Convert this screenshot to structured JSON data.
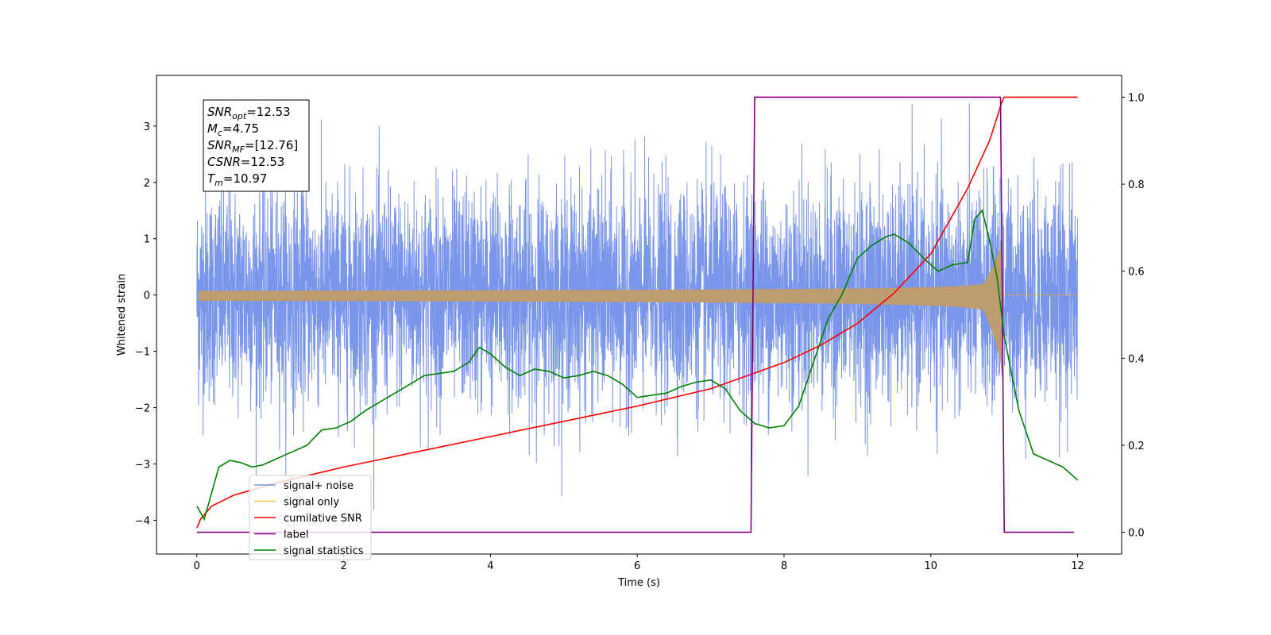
{
  "chart_data": {
    "type": "line",
    "xlabel": "Time (s)",
    "ylabel": "Whitened strain",
    "xlim": [
      -0.55,
      12.6
    ],
    "ylim": [
      -4.6,
      3.9
    ],
    "y2lim": [
      -0.05,
      1.05
    ],
    "x_ticks": [
      0,
      2,
      4,
      6,
      8,
      10,
      12
    ],
    "x_tick_labels": [
      "0",
      "2",
      "4",
      "6",
      "8",
      "10",
      "12"
    ],
    "y_ticks": [
      -4,
      -3,
      -2,
      -1,
      0,
      1,
      2,
      3
    ],
    "y_tick_labels": [
      "−4",
      "−3",
      "−2",
      "−1",
      "0",
      "1",
      "2",
      "3"
    ],
    "y2_ticks": [
      0.0,
      0.2,
      0.4,
      0.6,
      0.8,
      1.0
    ],
    "y2_tick_labels": [
      "0.0",
      "0.2",
      "0.4",
      "0.6",
      "0.8",
      "1.0"
    ],
    "grid": false,
    "legend_position": "lower-left",
    "annotation": [
      {
        "var": "SNR",
        "sub": "opt",
        "value": "=12.53"
      },
      {
        "var": "M",
        "sub": "c",
        "value": "=4.75"
      },
      {
        "var": "SNR",
        "sub": "MF",
        "value": "=[12.76]"
      },
      {
        "var": "CSNR",
        "sub": "",
        "value": "=12.53"
      },
      {
        "var": "T",
        "sub": "m",
        "value": "=10.97"
      }
    ],
    "series": [
      {
        "name": "signal+ noise",
        "color": "#4169e1",
        "axis": "left",
        "style": "noise",
        "x_range": [
          0,
          12
        ],
        "approx_range": [
          -4.2,
          3.5
        ]
      },
      {
        "name": "signal only",
        "color": "#ffa500",
        "axis": "left",
        "style": "chirp",
        "x_range": [
          0,
          12
        ],
        "merger_time": 10.97,
        "peak_amplitude": 0.65
      },
      {
        "name": "cumilative SNR",
        "color": "#ff0000",
        "axis": "right",
        "x": [
          0,
          0.05,
          0.2,
          0.5,
          1.0,
          2.0,
          3.0,
          4.0,
          5.0,
          6.0,
          7.0,
          7.5,
          8.0,
          8.5,
          9.0,
          9.5,
          10.0,
          10.5,
          10.8,
          10.97,
          11.0,
          12.0
        ],
        "y": [
          0.01,
          0.03,
          0.06,
          0.085,
          0.11,
          0.15,
          0.185,
          0.22,
          0.255,
          0.29,
          0.33,
          0.36,
          0.39,
          0.43,
          0.48,
          0.55,
          0.64,
          0.79,
          0.9,
          0.99,
          1.0,
          1.0
        ]
      },
      {
        "name": "label",
        "color": "#800080",
        "axis": "right",
        "x": [
          0,
          7.55,
          7.6,
          10.95,
          11.0,
          11.95
        ],
        "y": [
          0,
          0,
          1,
          1,
          0,
          0
        ]
      },
      {
        "name": "signal statistics",
        "color": "#008000",
        "axis": "right",
        "x": [
          0,
          0.1,
          0.2,
          0.3,
          0.45,
          0.6,
          0.75,
          0.9,
          1.1,
          1.3,
          1.5,
          1.7,
          1.9,
          2.1,
          2.3,
          2.5,
          2.7,
          2.9,
          3.1,
          3.3,
          3.5,
          3.7,
          3.85,
          4.0,
          4.2,
          4.4,
          4.6,
          4.8,
          5.0,
          5.2,
          5.4,
          5.6,
          5.8,
          6.0,
          6.2,
          6.4,
          6.6,
          6.8,
          7.0,
          7.2,
          7.4,
          7.6,
          7.8,
          8.0,
          8.2,
          8.4,
          8.6,
          8.8,
          9.0,
          9.2,
          9.4,
          9.5,
          9.7,
          9.9,
          10.1,
          10.3,
          10.5,
          10.6,
          10.7,
          10.8,
          10.9,
          11.0,
          11.2,
          11.4,
          11.6,
          11.8,
          12.0
        ],
        "y": [
          0.06,
          0.03,
          0.09,
          0.15,
          0.165,
          0.16,
          0.15,
          0.155,
          0.17,
          0.185,
          0.2,
          0.235,
          0.24,
          0.255,
          0.28,
          0.3,
          0.32,
          0.34,
          0.36,
          0.365,
          0.37,
          0.39,
          0.425,
          0.41,
          0.38,
          0.36,
          0.375,
          0.37,
          0.355,
          0.36,
          0.37,
          0.36,
          0.34,
          0.31,
          0.315,
          0.32,
          0.335,
          0.345,
          0.35,
          0.33,
          0.28,
          0.25,
          0.24,
          0.245,
          0.29,
          0.39,
          0.49,
          0.55,
          0.63,
          0.66,
          0.68,
          0.685,
          0.665,
          0.63,
          0.6,
          0.615,
          0.62,
          0.72,
          0.74,
          0.67,
          0.59,
          0.45,
          0.28,
          0.18,
          0.165,
          0.15,
          0.12
        ]
      }
    ]
  }
}
